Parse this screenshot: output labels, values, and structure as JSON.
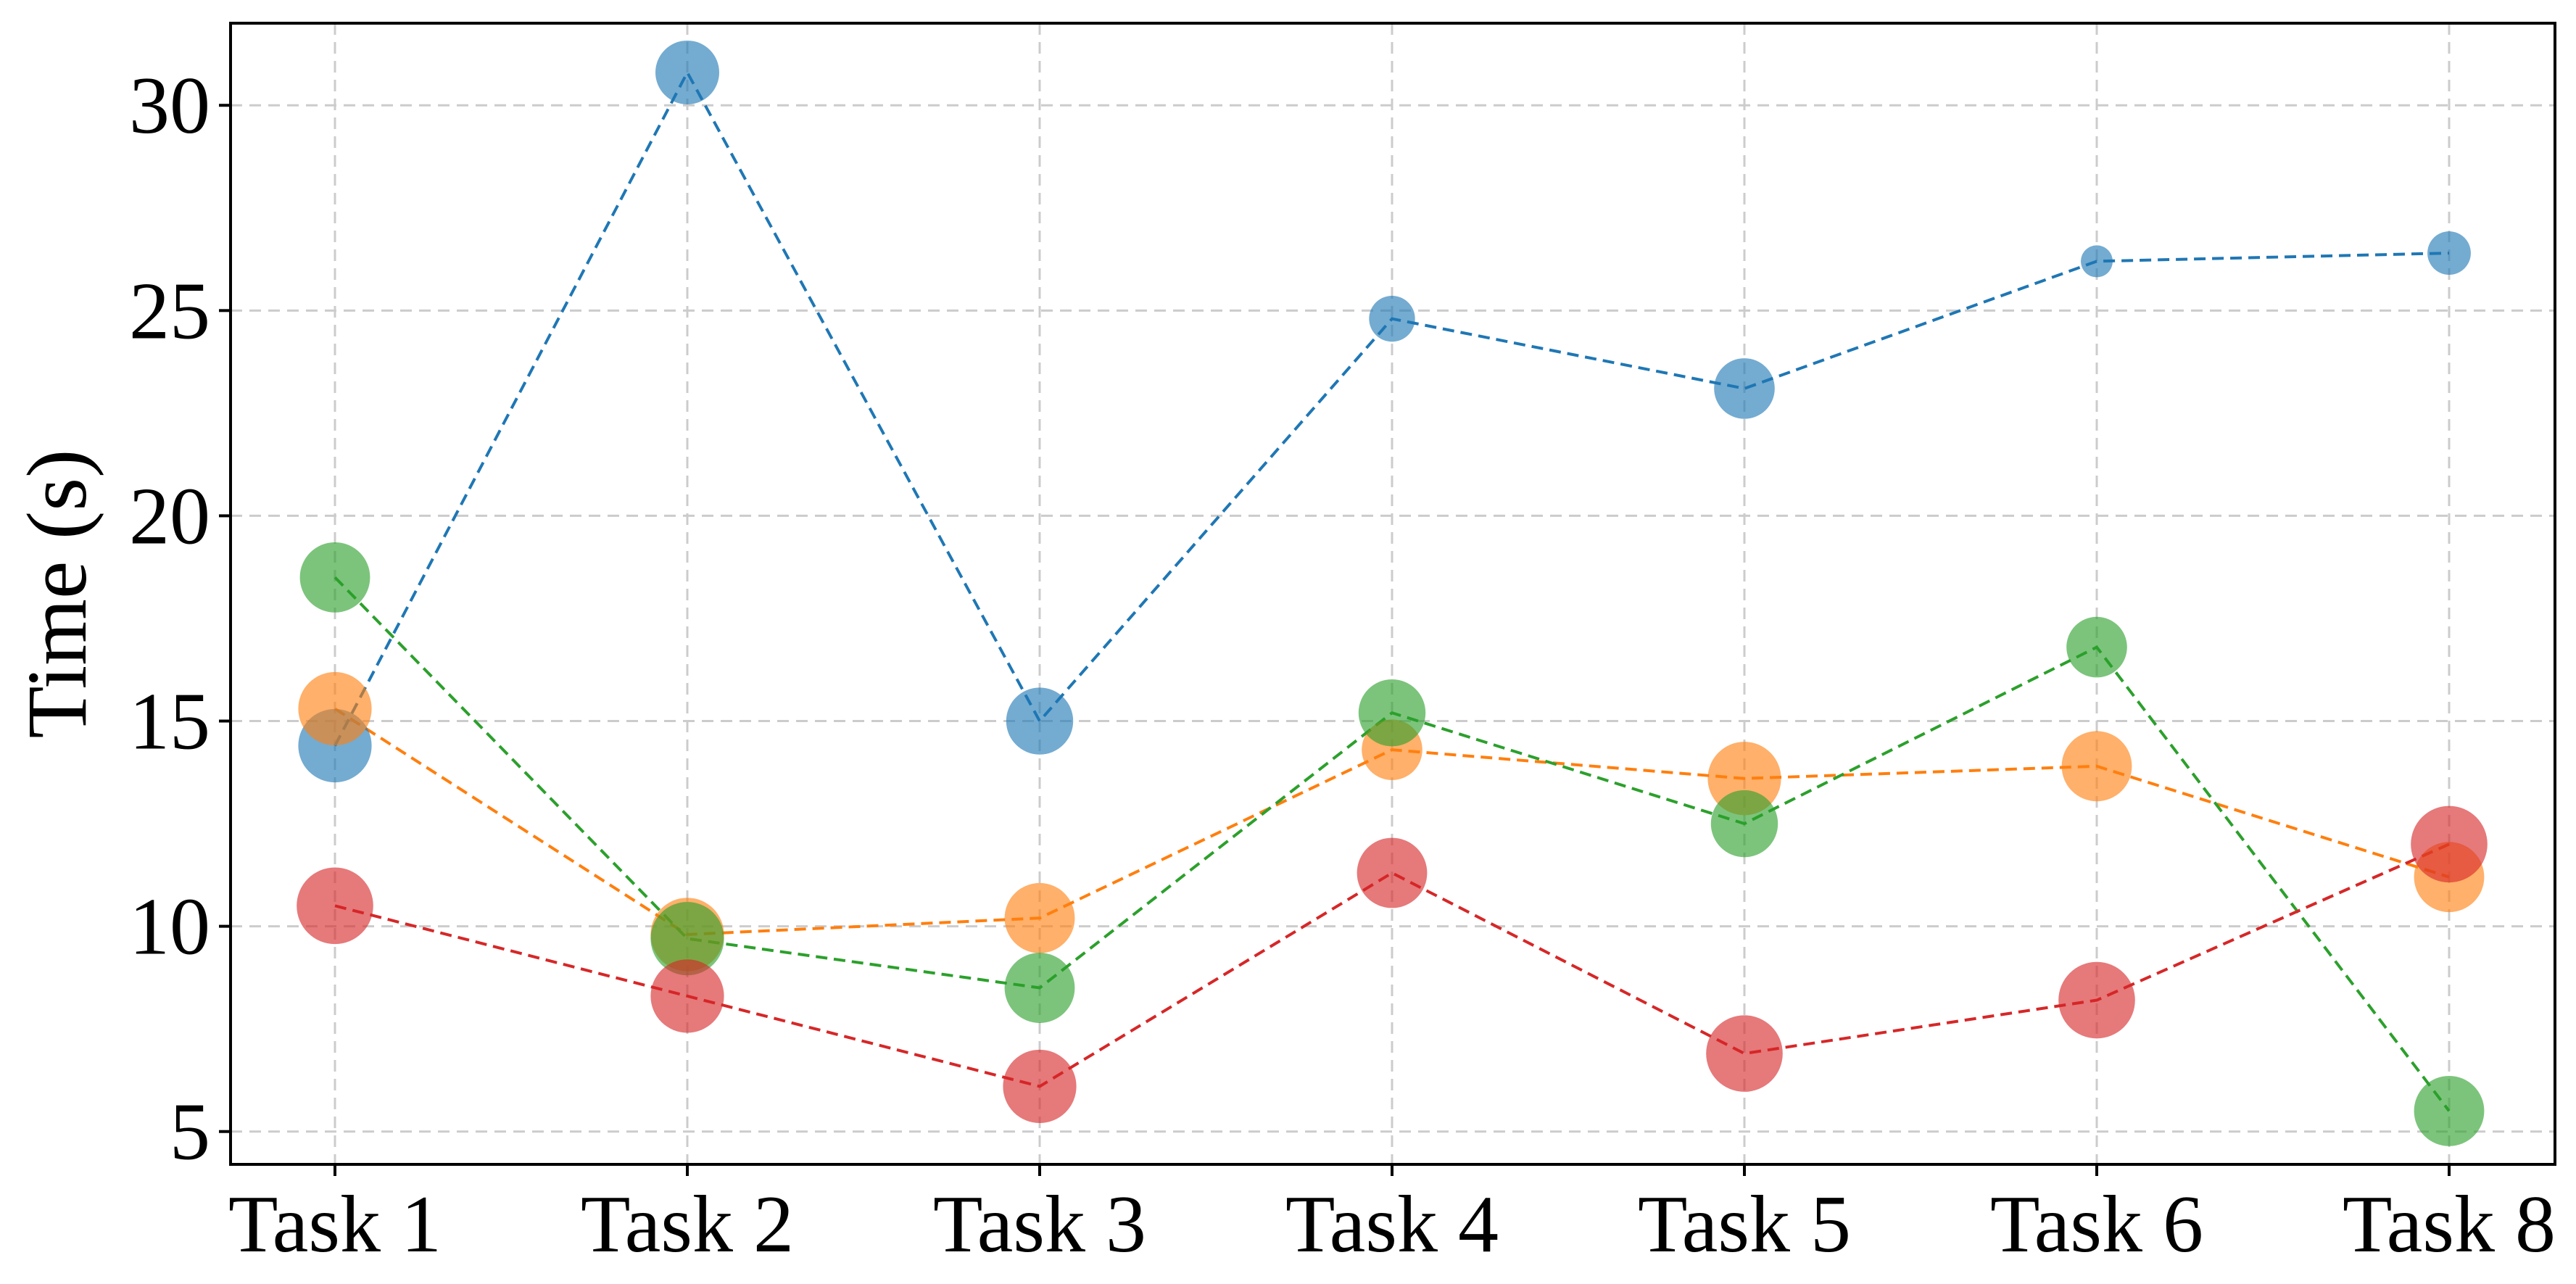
{
  "chart_data": {
    "type": "scatter",
    "title": "",
    "xlabel": "",
    "ylabel": "Time (s)",
    "categories": [
      "Task 1",
      "Task 2",
      "Task 3",
      "Task 4",
      "Task 5",
      "Task 6",
      "Task 8"
    ],
    "ylim": [
      4.2,
      32.0
    ],
    "yticks": [
      5,
      10,
      15,
      20,
      25,
      30
    ],
    "grid": true,
    "legend": "none",
    "series": [
      {
        "color": "#1f77b4",
        "values": [
          14.4,
          30.8,
          15.0,
          24.8,
          23.1,
          26.2,
          26.4
        ],
        "marker_sizes": [
          1.15,
          1.0,
          1.05,
          0.72,
          0.95,
          0.5,
          0.68
        ]
      },
      {
        "color": "#ff7f0e",
        "values": [
          15.3,
          9.8,
          10.2,
          14.3,
          13.6,
          13.9,
          11.2
        ],
        "marker_sizes": [
          1.15,
          1.15,
          1.1,
          0.95,
          1.15,
          1.1,
          1.1
        ]
      },
      {
        "color": "#2ca02c",
        "values": [
          18.5,
          9.7,
          8.5,
          15.2,
          12.5,
          16.8,
          5.5
        ],
        "marker_sizes": [
          1.1,
          1.15,
          1.1,
          1.05,
          1.05,
          0.95,
          1.1
        ]
      },
      {
        "color": "#d62728",
        "values": [
          10.5,
          8.3,
          6.1,
          11.3,
          6.9,
          8.2,
          12.0
        ],
        "marker_sizes": [
          1.2,
          1.15,
          1.15,
          1.1,
          1.2,
          1.2,
          1.2
        ]
      }
    ]
  }
}
